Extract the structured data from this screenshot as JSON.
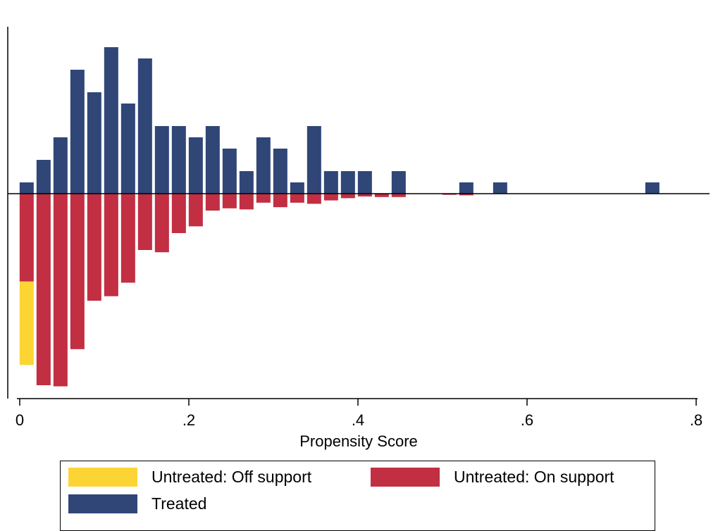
{
  "chart_data": {
    "type": "bar",
    "xlabel": "Propensity Score",
    "xlim": [
      -0.014,
      0.81
    ],
    "x_ticks": [
      0,
      0.2,
      0.4,
      0.6,
      0.8
    ],
    "x_tick_labels": [
      "0",
      ".2",
      ".4",
      ".6",
      ".8"
    ],
    "bin_width": 0.02,
    "y_axis_labels": false,
    "treated": {
      "name": "Treated",
      "color": "#2f4677",
      "bins": [
        {
          "x": 0.0082,
          "value": 1
        },
        {
          "x": 0.0282,
          "value": 3
        },
        {
          "x": 0.0482,
          "value": 5
        },
        {
          "x": 0.0682,
          "value": 11
        },
        {
          "x": 0.0882,
          "value": 9
        },
        {
          "x": 0.1082,
          "value": 13
        },
        {
          "x": 0.1282,
          "value": 8
        },
        {
          "x": 0.1482,
          "value": 12
        },
        {
          "x": 0.1682,
          "value": 6
        },
        {
          "x": 0.1882,
          "value": 6
        },
        {
          "x": 0.2082,
          "value": 5
        },
        {
          "x": 0.2282,
          "value": 6
        },
        {
          "x": 0.2482,
          "value": 4
        },
        {
          "x": 0.2682,
          "value": 2
        },
        {
          "x": 0.2882,
          "value": 5
        },
        {
          "x": 0.3082,
          "value": 4
        },
        {
          "x": 0.3282,
          "value": 1
        },
        {
          "x": 0.3482,
          "value": 6
        },
        {
          "x": 0.3682,
          "value": 2
        },
        {
          "x": 0.3882,
          "value": 2
        },
        {
          "x": 0.4082,
          "value": 2
        },
        {
          "x": 0.4482,
          "value": 2
        },
        {
          "x": 0.5282,
          "value": 1
        },
        {
          "x": 0.5682,
          "value": 1
        },
        {
          "x": 0.7482,
          "value": 1
        }
      ]
    },
    "untreated_on": {
      "name": "Untreated: On support",
      "color": "#c22e42",
      "bins": [
        {
          "x": 0.0082,
          "value": 7.8
        },
        {
          "x": 0.0282,
          "value": 17
        },
        {
          "x": 0.0482,
          "value": 17.1
        },
        {
          "x": 0.0682,
          "value": 13.8
        },
        {
          "x": 0.0882,
          "value": 9.5
        },
        {
          "x": 0.1082,
          "value": 9.1
        },
        {
          "x": 0.1282,
          "value": 7.9
        },
        {
          "x": 0.1482,
          "value": 5
        },
        {
          "x": 0.1682,
          "value": 5.2
        },
        {
          "x": 0.1882,
          "value": 3.5
        },
        {
          "x": 0.2082,
          "value": 2.9
        },
        {
          "x": 0.2282,
          "value": 1.5
        },
        {
          "x": 0.2482,
          "value": 1.3
        },
        {
          "x": 0.2682,
          "value": 1.4
        },
        {
          "x": 0.2882,
          "value": 0.8
        },
        {
          "x": 0.3082,
          "value": 1.2
        },
        {
          "x": 0.3282,
          "value": 0.8
        },
        {
          "x": 0.3482,
          "value": 0.9
        },
        {
          "x": 0.3682,
          "value": 0.6
        },
        {
          "x": 0.3882,
          "value": 0.4
        },
        {
          "x": 0.4082,
          "value": 0.25
        },
        {
          "x": 0.4282,
          "value": 0.3
        },
        {
          "x": 0.4482,
          "value": 0.3
        },
        {
          "x": 0.5082,
          "value": 0.1
        },
        {
          "x": 0.5282,
          "value": 0.15
        }
      ]
    },
    "untreated_off": {
      "name": "Untreated: Off support",
      "color": "#fcd535",
      "bins": [
        {
          "x": 0.0082,
          "value": 7.4,
          "base": 7.8
        }
      ]
    }
  },
  "legend": {
    "items": [
      {
        "label": "Untreated: Off support",
        "color": "#fcd535"
      },
      {
        "label": "Untreated: On support",
        "color": "#c22e42"
      },
      {
        "label": "Treated",
        "color": "#2f4677"
      }
    ]
  }
}
